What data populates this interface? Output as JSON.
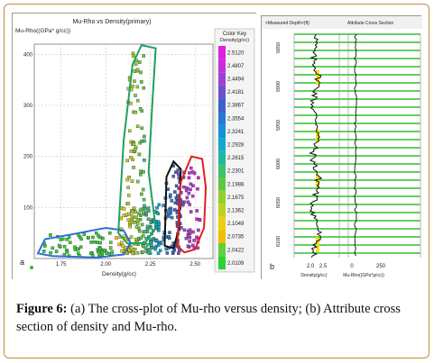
{
  "caption": {
    "label": "Figure 6:",
    "text": "(a) The cross-plot of Mu-rho versus density; (b) Attribute cross section of density and Mu-rho."
  },
  "panel_a": {
    "letter": "a",
    "title": "Mu-Rho vs Density(primary)",
    "ylabel": "Mu-Rho((GPa* g/cc))",
    "xlabel": "Density(g/cc)",
    "colorkey": {
      "title": "Color Key",
      "subtitle": "Density(g/cc)",
      "values": [
        "2.5120",
        "2.4807",
        "2.4494",
        "2.4181",
        "2.3867",
        "2.3554",
        "2.3241",
        "2.2928",
        "2.2615",
        "2.2301",
        "2.1988",
        "2.1675",
        "2.1362",
        "2.1049",
        "2.0735",
        "2.0422",
        "2.0109"
      ],
      "colors": [
        "#e020e0",
        "#c830d8",
        "#a040d0",
        "#7050c8",
        "#4060c8",
        "#2878d0",
        "#1890d8",
        "#10a8d0",
        "#20b8a0",
        "#40c070",
        "#60c840",
        "#90d030",
        "#c0d020",
        "#e8d010",
        "#f0c000",
        "#60d040",
        "#30d030"
      ]
    }
  },
  "panel_b": {
    "letter": "b",
    "header_left": "<Measured Depth>(ft)",
    "header_right": "Attribute Cross Section",
    "depth_ticks": [
      "5850",
      "5900",
      "5950",
      "6000",
      "6050",
      "6100"
    ],
    "density_ticks": [
      "2.0",
      "2.5"
    ],
    "mu_ticks": [
      "0",
      "250"
    ],
    "xlabel_left": "Density(g/cc)",
    "xlabel_right": "Mu-Rho((GPa*g/cc))"
  },
  "chart_data": {
    "type": "scatter",
    "title": "Mu-Rho vs Density(primary)",
    "xlabel": "Density(g/cc)",
    "ylabel": "Mu-Rho((GPa* g/cc))",
    "xlim": [
      1.6,
      2.6
    ],
    "ylim": [
      0,
      420
    ],
    "xticks": [
      "1.75",
      "2.00",
      "2.25",
      "2.50"
    ],
    "yticks": [
      "100",
      "200",
      "300",
      "400"
    ],
    "clusters": [
      {
        "outline": "blue",
        "x_range": [
          1.62,
          2.12
        ],
        "y_range": [
          0,
          55
        ]
      },
      {
        "outline": "green",
        "x_range": [
          2.05,
          2.3
        ],
        "y_range": [
          40,
          415
        ]
      },
      {
        "outline": "black",
        "x_range": [
          2.33,
          2.42
        ],
        "y_range": [
          20,
          190
        ]
      },
      {
        "outline": "red",
        "x_range": [
          2.4,
          2.55
        ],
        "y_range": [
          20,
          200
        ]
      }
    ]
  }
}
